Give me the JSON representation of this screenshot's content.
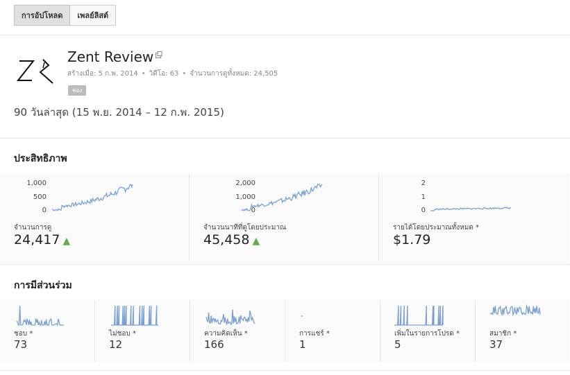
{
  "tabs": [
    "การอัปโหลด",
    "เพลย์ลิสต์"
  ],
  "channel": {
    "title": "Zent Review",
    "created": "สร้างเมื่อ: 5 ก.พ. 2014",
    "videos": "วิดีโอ: 63",
    "total_views": "จำนวนการดูทั้งหมด: 24,505",
    "badge": "ช่อง"
  },
  "date_range": "90 วันล่าสุด (15 พ.ย. 2014 – 12 ก.พ. 2015)",
  "performance": {
    "title": "ประสิทธิภาพ",
    "metrics": [
      {
        "label": "จำนวนการดู",
        "value": "24,417",
        "trend": "▲",
        "ticks": [
          "1,000",
          "500",
          "0"
        ]
      },
      {
        "label": "จำนวนนาทีที่ดูโดยประมาณ",
        "value": "45,458",
        "trend": "▲",
        "ticks": [
          "2,000",
          "1,000",
          "0"
        ]
      },
      {
        "label": "รายได้โดยประมาณทั้งหมด *",
        "value": "$1.79",
        "trend": "",
        "ticks": [
          "2",
          "1",
          "0"
        ]
      }
    ]
  },
  "engagement": {
    "title": "การมีส่วนร่วม",
    "metrics": [
      {
        "label": "ชอบ *",
        "value": "73"
      },
      {
        "label": "ไม่ชอบ *",
        "value": "12"
      },
      {
        "label": "ความคิดเห็น *",
        "value": "166"
      },
      {
        "label": "การแชร์ *",
        "value": "1"
      },
      {
        "label": "เพิ่มในรายการโปรด *",
        "value": "5"
      },
      {
        "label": "สมาชิก *",
        "value": "37"
      }
    ]
  },
  "colors": {
    "spark": "#7b9fd0",
    "trend_up": "#6aa84f",
    "badge": "#bbbbbb"
  },
  "icons": {
    "external_link": "external-link-icon",
    "logo": "channel-logo"
  }
}
